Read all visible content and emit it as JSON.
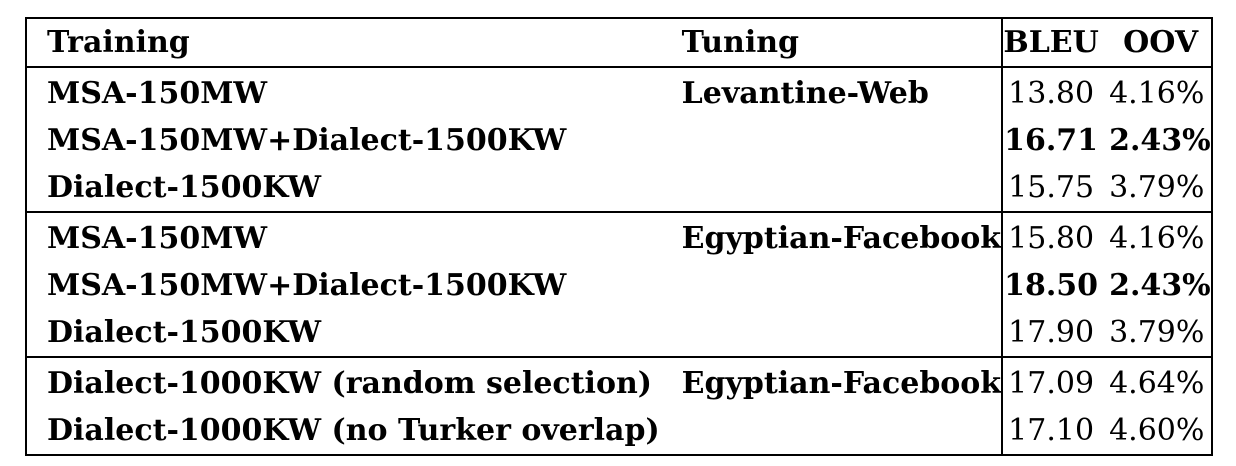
{
  "table": {
    "headers": {
      "training": "Training",
      "tuning": "Tuning",
      "bleu": "BLEU",
      "oov": "OOV"
    },
    "groups": [
      {
        "rows": [
          {
            "training": "MSA-150MW",
            "tuning": "Levantine-Web",
            "bleu": "13.80",
            "oov": "4.16%",
            "bold": false
          },
          {
            "training": "MSA-150MW+Dialect-1500KW",
            "tuning": "",
            "bleu": "16.71",
            "oov": "2.43%",
            "bold": true
          },
          {
            "training": "Dialect-1500KW",
            "tuning": "",
            "bleu": "15.75",
            "oov": "3.79%",
            "bold": false
          }
        ]
      },
      {
        "rows": [
          {
            "training": "MSA-150MW",
            "tuning": "Egyptian-Facebook",
            "bleu": "15.80",
            "oov": "4.16%",
            "bold": false
          },
          {
            "training": "MSA-150MW+Dialect-1500KW",
            "tuning": "",
            "bleu": "18.50",
            "oov": "2.43%",
            "bold": true
          },
          {
            "training": "Dialect-1500KW",
            "tuning": "",
            "bleu": "17.90",
            "oov": "3.79%",
            "bold": false
          }
        ]
      },
      {
        "rows": [
          {
            "training": "Dialect-1000KW (random selection)",
            "tuning": "Egyptian-Facebook",
            "bleu": "17.09",
            "oov": "4.64%",
            "bold": false
          },
          {
            "training": "Dialect-1000KW (no Turker overlap)",
            "tuning": "",
            "bleu": "17.10",
            "oov": "4.60%",
            "bold": false
          }
        ]
      }
    ]
  }
}
